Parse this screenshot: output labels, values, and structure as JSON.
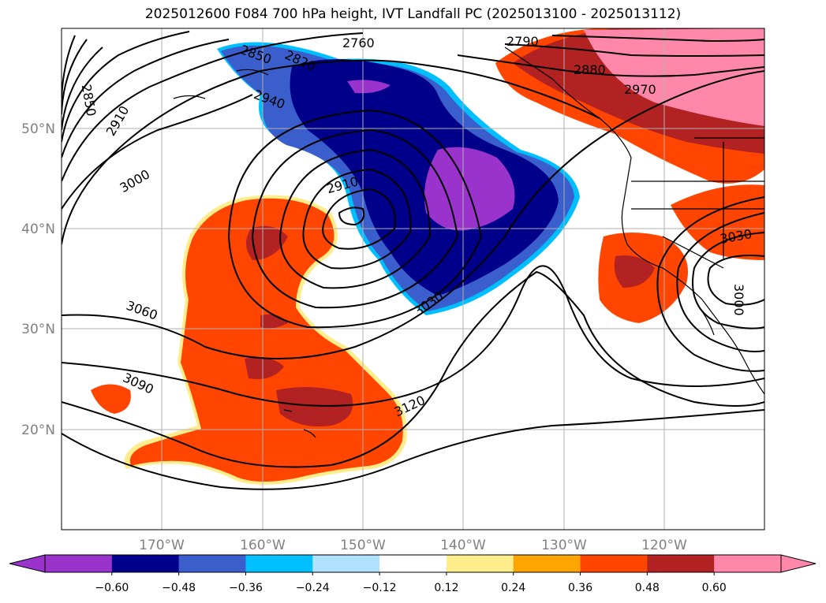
{
  "title": "2025012600 F084 700 hPa height, IVT Landfall PC (2025013100 - 2025013112)",
  "map": {
    "lon_ticks": [
      "170°W",
      "160°W",
      "150°W",
      "140°W",
      "130°W",
      "120°W"
    ],
    "lat_ticks": [
      "50°N",
      "40°N",
      "30°N",
      "20°N"
    ],
    "contour_labels": [
      "2850",
      "2910",
      "3000",
      "2850",
      "2820",
      "2760",
      "2790",
      "2880",
      "2970",
      "2940",
      "2910",
      "3030",
      "3060",
      "3090",
      "3120",
      "3030",
      "3000"
    ]
  },
  "colorbar": {
    "tick_labels": [
      "−0.60",
      "−0.48",
      "−0.36",
      "−0.24",
      "−0.12",
      "0.12",
      "0.24",
      "0.36",
      "0.48",
      "0.60"
    ],
    "colors": [
      "#9933cc",
      "#00008b",
      "#3a5fcd",
      "#00bfff",
      "#b0e2ff",
      "#ffffff",
      "#ffec8b",
      "#ffa500",
      "#ff4500",
      "#b22222",
      "#ff88aa"
    ]
  }
}
